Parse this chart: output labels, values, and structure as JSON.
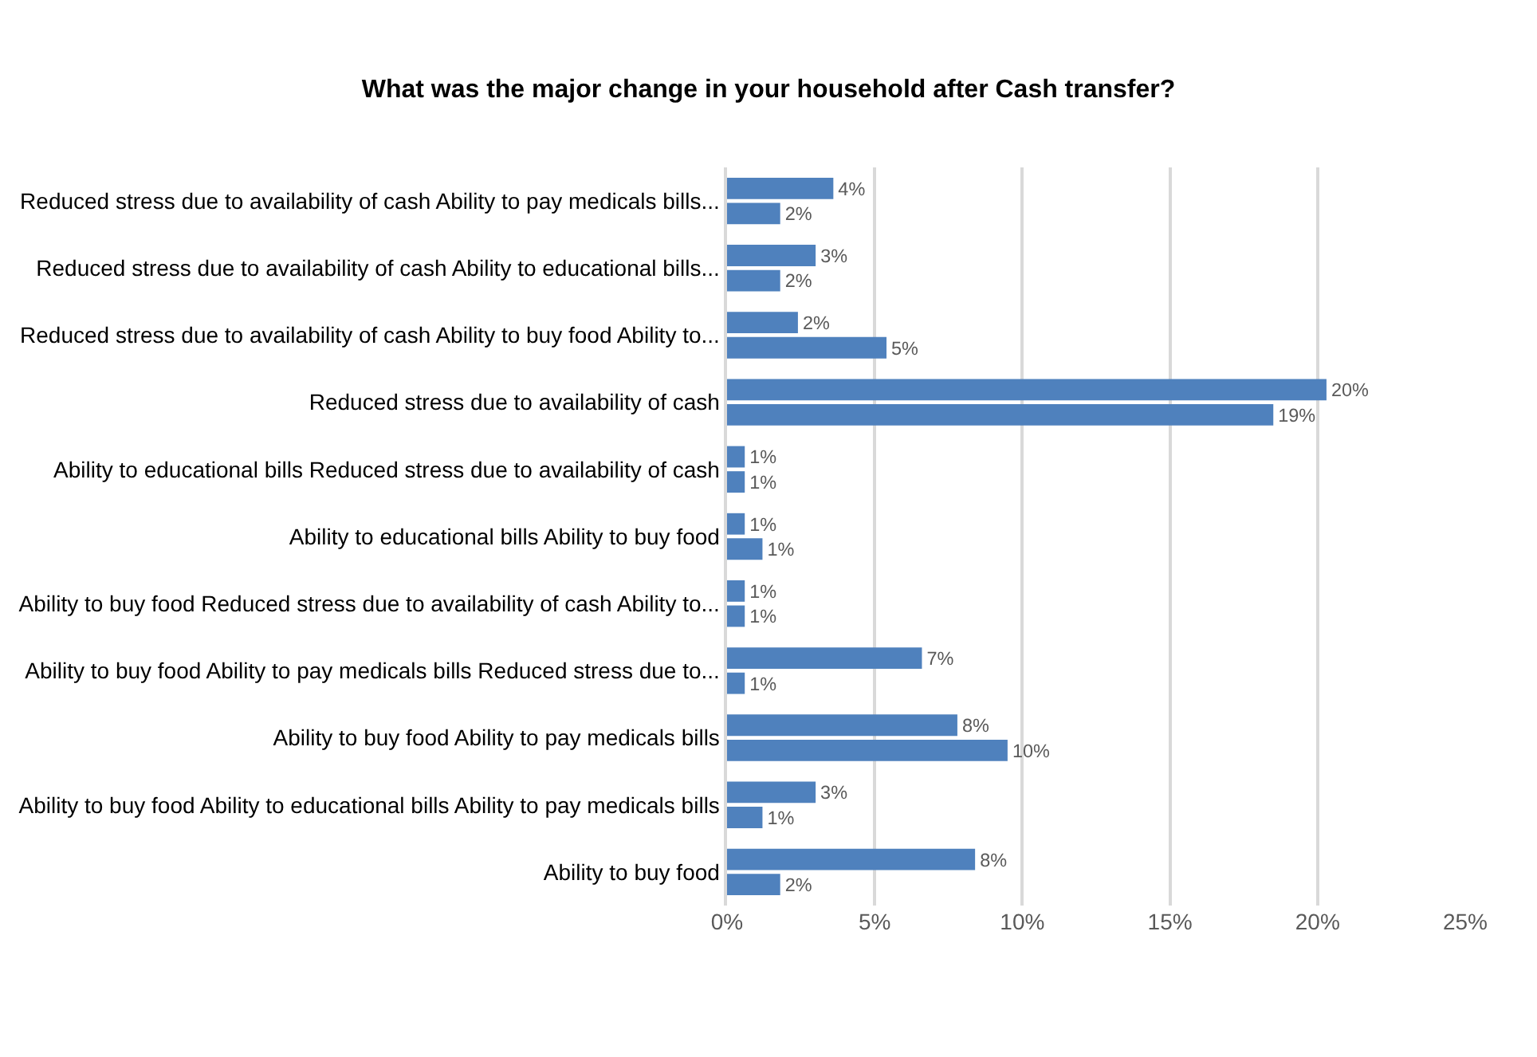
{
  "chart_data": {
    "type": "bar",
    "orientation": "horizontal",
    "title": "What was the major change in your household after Cash transfer?",
    "categories": [
      "Reduced stress due to availability of cash Ability to pay medicals bills...",
      "Reduced stress due to availability of cash Ability to educational bills...",
      "Reduced stress due to availability of cash Ability to buy food Ability to...",
      "Reduced stress due to availability of cash",
      "Ability to educational bills Reduced stress due to availability of cash",
      "Ability to educational bills Ability to buy food",
      "Ability to buy food Reduced stress due to availability of cash Ability to...",
      "Ability to buy food Ability to pay medicals bills Reduced stress due to...",
      "Ability to buy food Ability to pay medicals bills",
      "Ability to buy food Ability to educational bills Ability to pay medicals bills",
      "Ability to buy food"
    ],
    "series": [
      {
        "color": "#4f81bd",
        "values": [
          3.6,
          3.0,
          2.4,
          20.3,
          0.6,
          0.6,
          0.6,
          6.6,
          7.8,
          3.0,
          8.4
        ],
        "value_labels": [
          "4%",
          "3%",
          "2%",
          "20%",
          "1%",
          "1%",
          "1%",
          "7%",
          "8%",
          "3%",
          "8%"
        ]
      },
      {
        "color": "#4f81bd",
        "values": [
          1.8,
          1.8,
          5.4,
          18.5,
          0.6,
          1.2,
          0.6,
          0.6,
          9.5,
          1.2,
          1.8
        ],
        "value_labels": [
          "2%",
          "2%",
          "5%",
          "19%",
          "1%",
          "1%",
          "1%",
          "1%",
          "10%",
          "1%",
          "2%"
        ]
      }
    ],
    "xlim": [
      0,
      25
    ],
    "xticks": [
      {
        "value": 0,
        "label": "0%"
      },
      {
        "value": 5,
        "label": "5%"
      },
      {
        "value": 10,
        "label": "10%"
      },
      {
        "value": 15,
        "label": "15%"
      },
      {
        "value": 20,
        "label": "20%"
      },
      {
        "value": 25,
        "label": "25%"
      }
    ],
    "grid": "x"
  }
}
